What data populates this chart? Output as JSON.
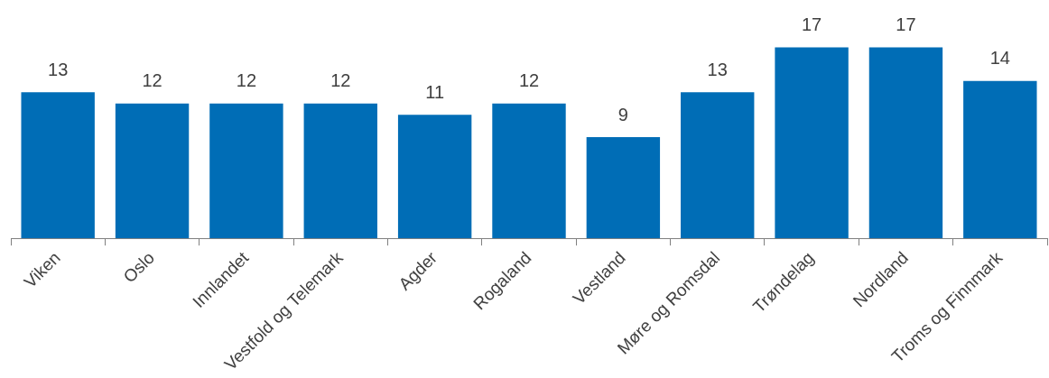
{
  "chart_data": {
    "type": "bar",
    "categories": [
      "Viken",
      "Oslo",
      "Innlandet",
      "Vestfold og Telemark",
      "Agder",
      "Rogaland",
      "Vestland",
      "Møre og Romsdal",
      "Trøndelag",
      "Nordland",
      "Troms og Finnmark"
    ],
    "values": [
      13,
      12,
      12,
      12,
      11,
      12,
      9,
      13,
      17,
      17,
      14
    ],
    "color": "#006db6",
    "data_labels": true,
    "tick_labels": "x",
    "grid": false,
    "legend": false
  }
}
